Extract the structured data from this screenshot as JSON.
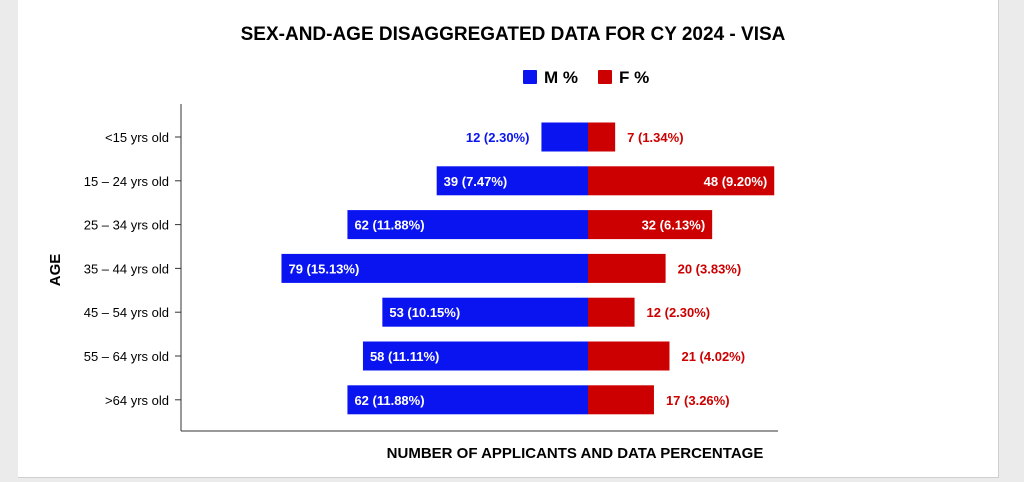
{
  "chart_data": {
    "type": "bar",
    "orientation": "horizontal-diverging",
    "title": "SEX-AND-AGE DISAGGREGATED DATA FOR CY 2024 - VISA",
    "xlabel": "NUMBER OF APPLICANTS AND DATA PERCENTAGE",
    "ylabel": "AGE",
    "legend_position": "top-center",
    "grid": false,
    "xlim": [
      -100,
      100
    ],
    "categories": [
      "<15 yrs old",
      "15 – 24 yrs old",
      "25 – 34 yrs old",
      "35 – 44 yrs old",
      "45 – 54 yrs old",
      "55 – 64 yrs old",
      ">64 yrs old"
    ],
    "series": [
      {
        "name": "M %",
        "color": "#0a14f0",
        "direction": "left",
        "values": [
          12,
          39,
          62,
          79,
          53,
          58,
          62
        ],
        "labels": [
          "12  (2.30%)",
          "39  (7.47%)",
          "62  (11.88%)",
          "79  (15.13%)",
          "53  (10.15%)",
          "58  (11.11%)",
          "62  (11.88%)"
        ]
      },
      {
        "name": "F %",
        "color": "#cc0000",
        "direction": "right",
        "values": [
          7,
          48,
          32,
          20,
          12,
          21,
          17
        ],
        "labels": [
          "7  (1.34%)",
          "48  (9.20%)",
          "32  (6.13%)",
          "20  (3.83%)",
          "12  (2.30%)",
          "21  (4.02%)",
          "17  (3.26%)"
        ]
      }
    ]
  }
}
